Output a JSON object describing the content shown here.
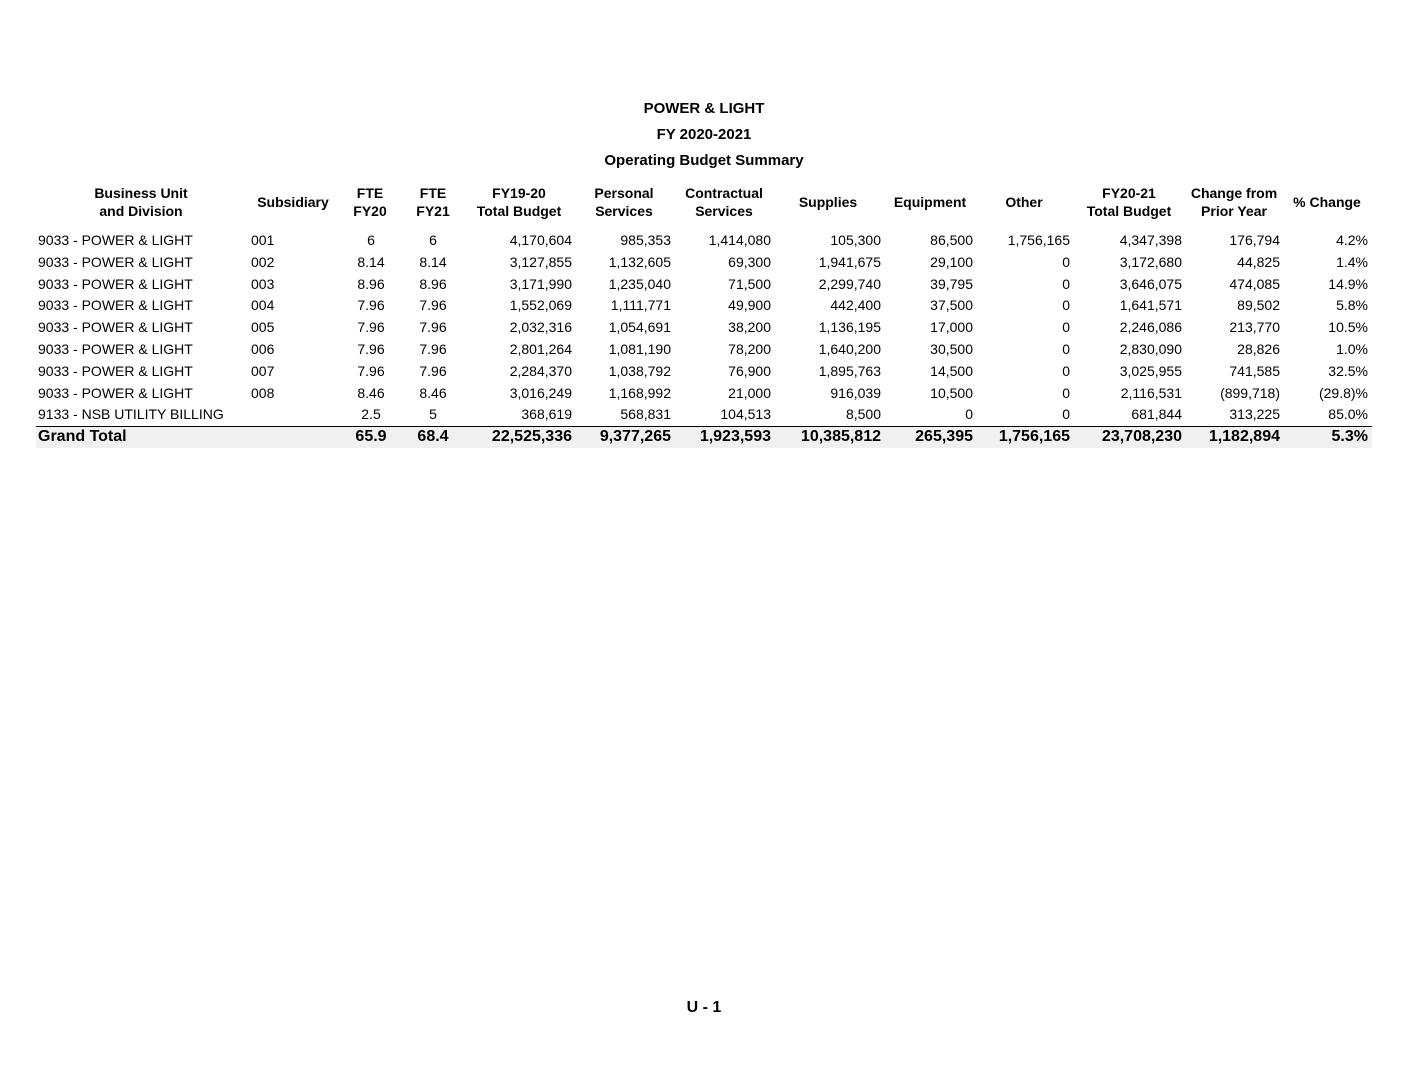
{
  "header": {
    "title": "POWER & LIGHT",
    "subtitle": "FY 2020-2021",
    "caption": "Operating Budget Summary"
  },
  "table": {
    "columns": [
      [
        "Business Unit",
        "and Division"
      ],
      [
        "Subsidiary"
      ],
      [
        "FTE",
        "FY20"
      ],
      [
        "FTE",
        "FY21"
      ],
      [
        "FY19-20",
        "Total Budget"
      ],
      [
        "Personal",
        "Services"
      ],
      [
        "Contractual",
        "Services"
      ],
      [
        "Supplies"
      ],
      [
        "Equipment"
      ],
      [
        "Other"
      ],
      [
        "FY20-21",
        "Total Budget"
      ],
      [
        "Change from",
        "Prior Year"
      ],
      [
        "% Change"
      ]
    ],
    "rows": [
      [
        "9033 - POWER & LIGHT",
        "001",
        "6",
        "6",
        "4,170,604",
        "985,353",
        "1,414,080",
        "105,300",
        "86,500",
        "1,756,165",
        "4,347,398",
        "176,794",
        "4.2%"
      ],
      [
        "9033 - POWER & LIGHT",
        "002",
        "8.14",
        "8.14",
        "3,127,855",
        "1,132,605",
        "69,300",
        "1,941,675",
        "29,100",
        "0",
        "3,172,680",
        "44,825",
        "1.4%"
      ],
      [
        "9033 - POWER & LIGHT",
        "003",
        "8.96",
        "8.96",
        "3,171,990",
        "1,235,040",
        "71,500",
        "2,299,740",
        "39,795",
        "0",
        "3,646,075",
        "474,085",
        "14.9%"
      ],
      [
        "9033 - POWER & LIGHT",
        "004",
        "7.96",
        "7.96",
        "1,552,069",
        "1,111,771",
        "49,900",
        "442,400",
        "37,500",
        "0",
        "1,641,571",
        "89,502",
        "5.8%"
      ],
      [
        "9033 - POWER & LIGHT",
        "005",
        "7.96",
        "7.96",
        "2,032,316",
        "1,054,691",
        "38,200",
        "1,136,195",
        "17,000",
        "0",
        "2,246,086",
        "213,770",
        "10.5%"
      ],
      [
        "9033 - POWER & LIGHT",
        "006",
        "7.96",
        "7.96",
        "2,801,264",
        "1,081,190",
        "78,200",
        "1,640,200",
        "30,500",
        "0",
        "2,830,090",
        "28,826",
        "1.0%"
      ],
      [
        "9033 - POWER & LIGHT",
        "007",
        "7.96",
        "7.96",
        "2,284,370",
        "1,038,792",
        "76,900",
        "1,895,763",
        "14,500",
        "0",
        "3,025,955",
        "741,585",
        "32.5%"
      ],
      [
        "9033 - POWER & LIGHT",
        "008",
        "8.46",
        "8.46",
        "3,016,249",
        "1,168,992",
        "21,000",
        "916,039",
        "10,500",
        "0",
        "2,116,531",
        "(899,718)",
        "(29.8)%"
      ],
      [
        "9133 - NSB UTILITY BILLING",
        null,
        "2.5",
        "5",
        "368,619",
        "568,831",
        "104,513",
        "8,500",
        "0",
        "0",
        "681,844",
        "313,225",
        "85.0%"
      ]
    ],
    "total": [
      "Grand Total",
      null,
      "65.9",
      "68.4",
      "22,525,336",
      "9,377,265",
      "1,923,593",
      "10,385,812",
      "265,395",
      "1,756,165",
      "23,708,230",
      "1,182,894",
      "5.3%"
    ]
  },
  "footer": {
    "page": "U - 1"
  }
}
